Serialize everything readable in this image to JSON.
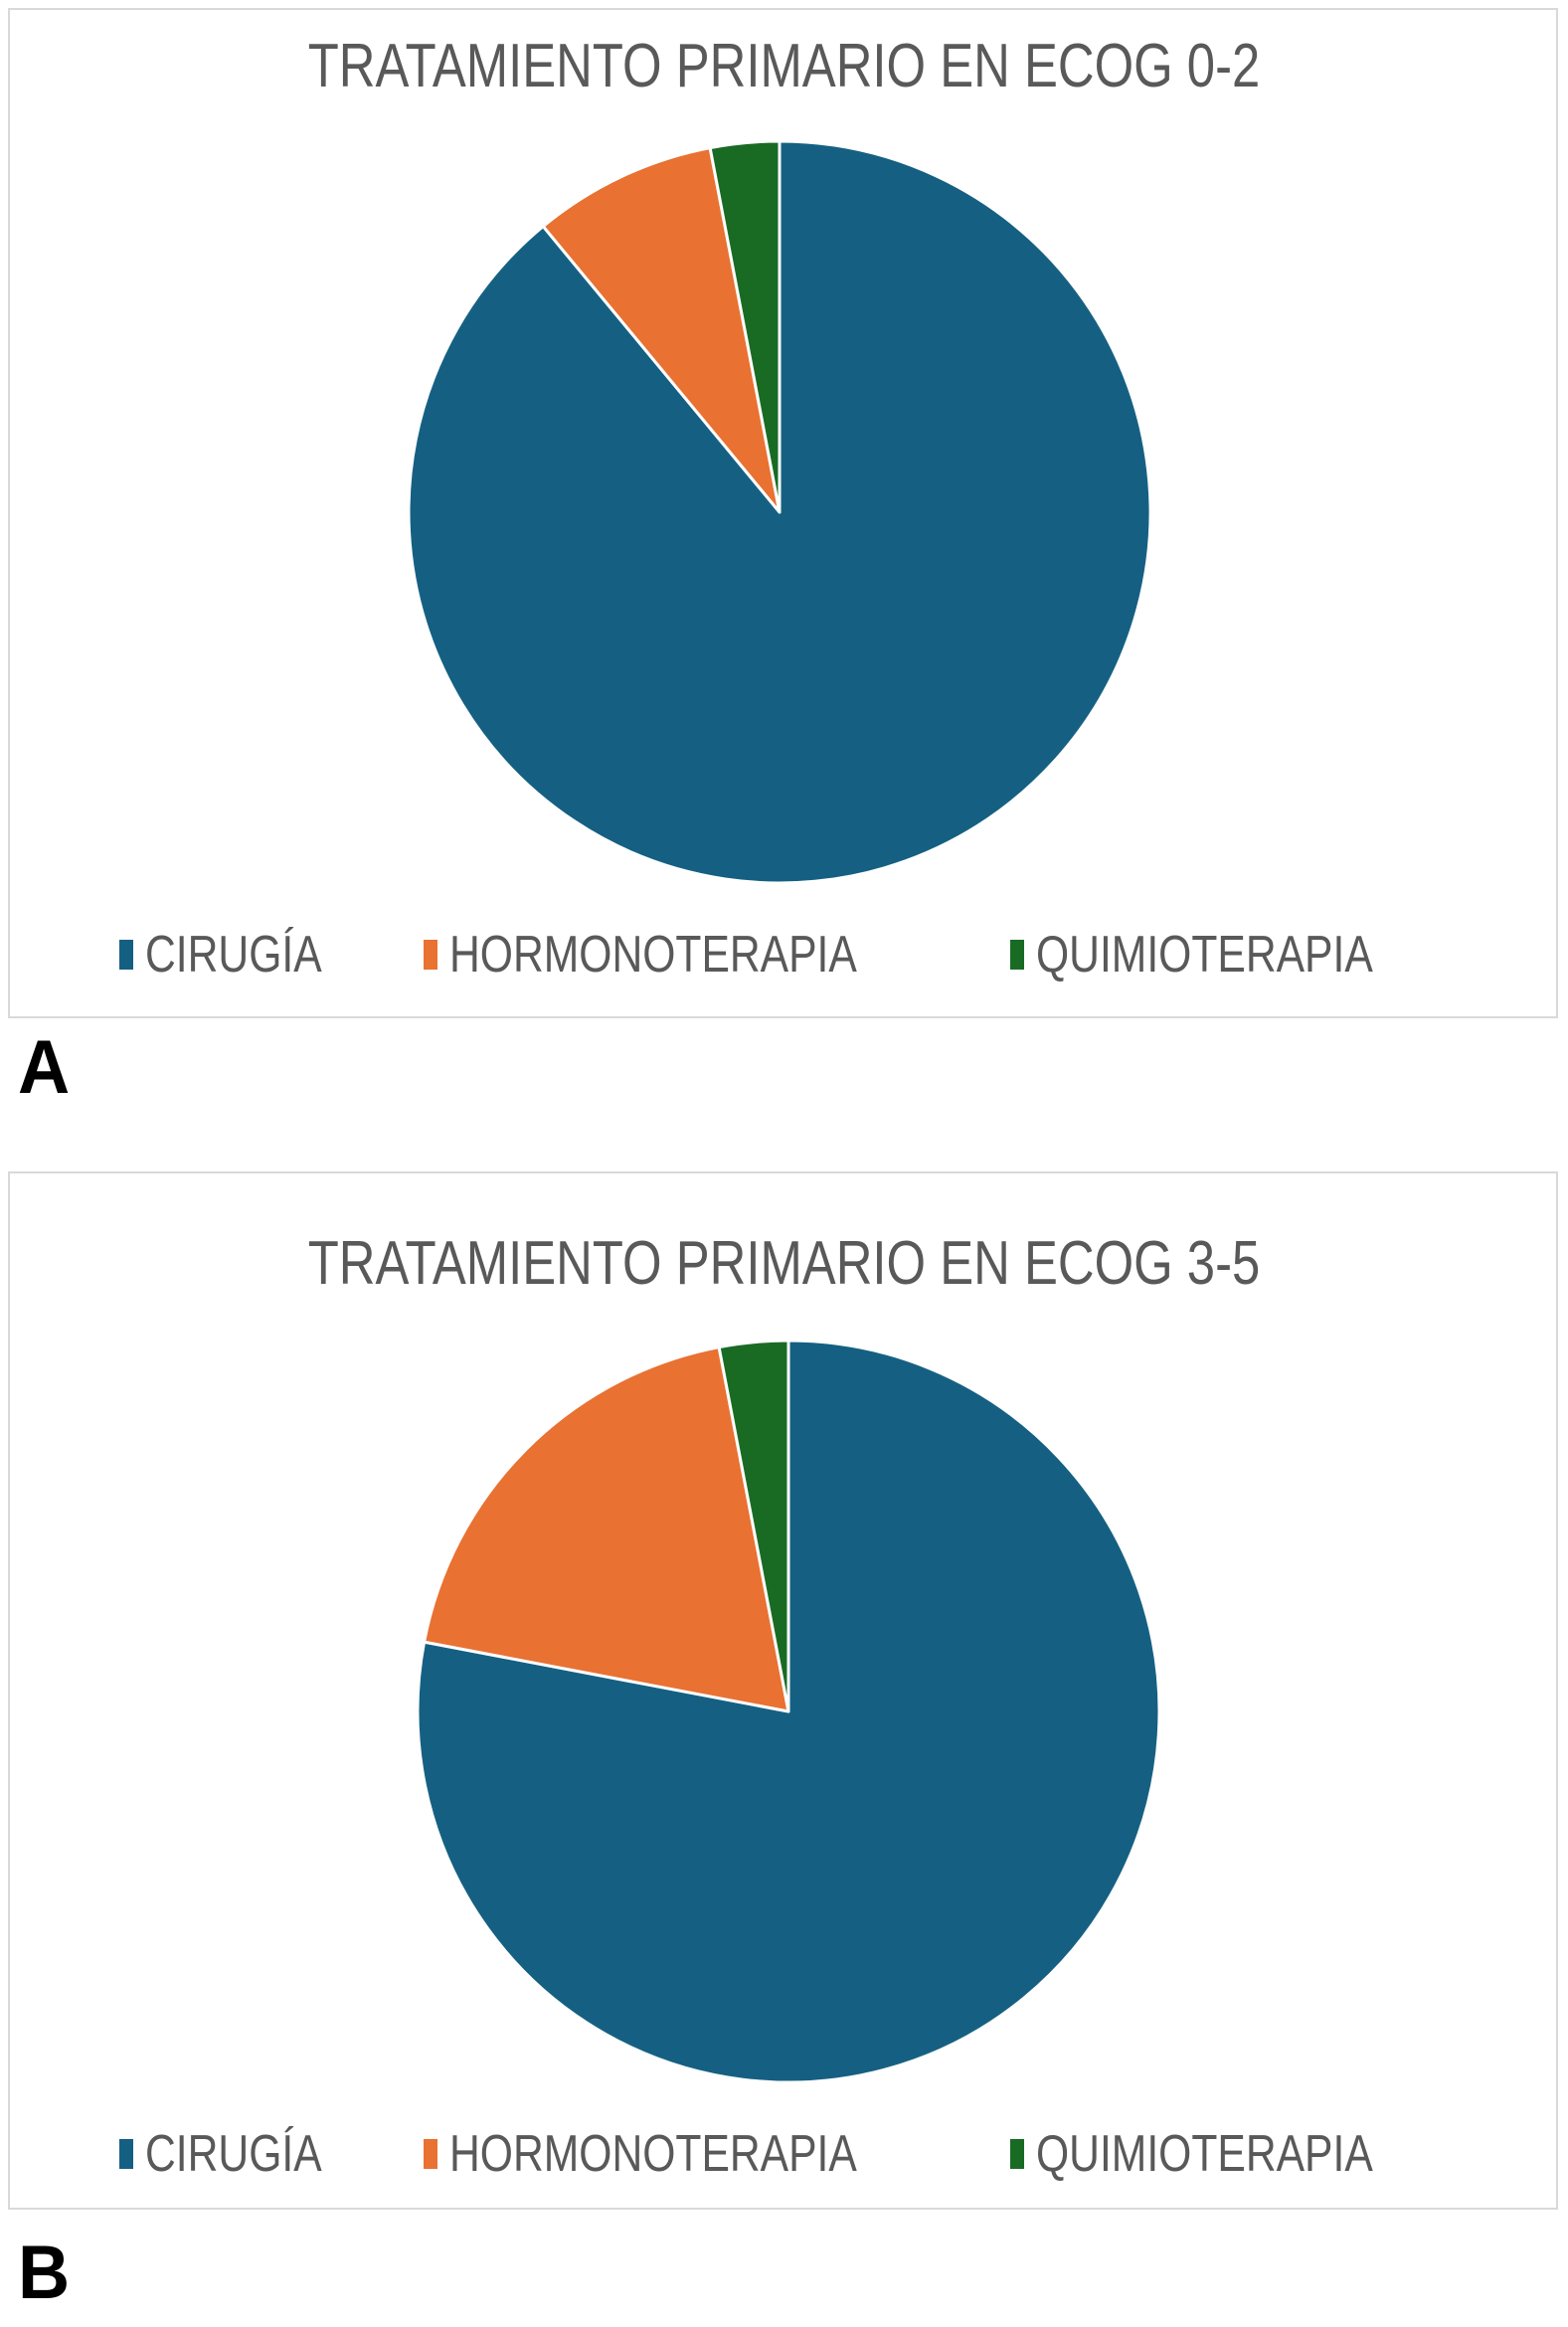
{
  "figure": {
    "panel_labels": {
      "a": "A",
      "b": "B"
    }
  },
  "style": {
    "background_color": "#FFFFFF",
    "panel_border_color": "#D9D9D9",
    "title_color": "#595959",
    "legend_text_color": "#595959",
    "slice_separator_color": "#FFFFFF",
    "panel_label_color": "#000000"
  },
  "chart_data": [
    {
      "type": "pie",
      "title": "TRATAMIENTO PRIMARIO EN ECOG 0-2",
      "categories": [
        "CIRUGÍA",
        "HORMONOTERAPIA",
        "QUIMIOTERAPIA"
      ],
      "values_percent": [
        89,
        8,
        3
      ],
      "colors": [
        "#156082",
        "#E97132",
        "#196B24"
      ],
      "start_angle_deg": 0,
      "direction": "clockwise",
      "legend_position": "bottom",
      "legend_entries": [
        "CIRUGÍA",
        "HORMONOTERAPIA",
        "QUIMIOTERAPIA"
      ]
    },
    {
      "type": "pie",
      "title": "TRATAMIENTO PRIMARIO EN ECOG 3-5",
      "categories": [
        "CIRUGÍA",
        "HORMONOTERAPIA",
        "QUIMIOTERAPIA"
      ],
      "values_percent": [
        78,
        19,
        3
      ],
      "colors": [
        "#156082",
        "#E97132",
        "#196B24"
      ],
      "start_angle_deg": 0,
      "direction": "clockwise",
      "legend_position": "bottom",
      "legend_entries": [
        "CIRUGÍA",
        "HORMONOTERAPIA",
        "QUIMIOTERAPIA"
      ]
    }
  ]
}
